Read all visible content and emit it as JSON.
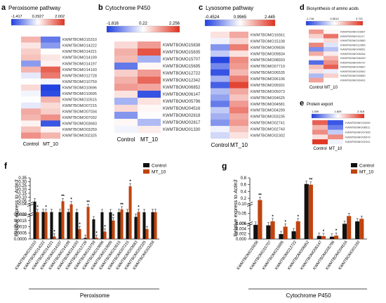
{
  "chart_data": [
    {
      "type": "heatmap",
      "panel_letter": "a",
      "title": "Peroxisome pathway",
      "scale": {
        "labels": [
          "-1.417",
          "0.2927",
          "2.002"
        ],
        "min": -1.417,
        "mid": 0.2927,
        "max": 2.002
      },
      "columns": [
        "Control",
        "MT_10"
      ],
      "rows": [
        "KWMTBOMO15310",
        "KWMTBOMO14222",
        "KWMTBOMO14221",
        "KWMTBOMO14199",
        "KWMTBOMO14197",
        "KWMTBOMO14193",
        "KWMTBOMO12728",
        "KWMTBOMO10759",
        "KWMTBOMO10696",
        "KWMTBOMO10695",
        "KWMTBOMO10515",
        "KWMTBOMO07215",
        "KWMTBOMO07034",
        "KWMTBOMO07032",
        "KWMTBOMO03683",
        "KWMTBOMO03259",
        "KWMTBOMO02325"
      ],
      "values": [
        [
          0.9,
          -0.9
        ],
        [
          0.5,
          -0.6
        ],
        [
          0.7,
          0.3
        ],
        [
          0.8,
          0.5
        ],
        [
          -0.6,
          0.4
        ],
        [
          0.9,
          1.6
        ],
        [
          0.1,
          1.4
        ],
        [
          0.3,
          0.2
        ],
        [
          0.6,
          -1.4
        ],
        [
          0.2,
          -1.3
        ],
        [
          0.3,
          0.9
        ],
        [
          0.1,
          0.6
        ],
        [
          1.0,
          0.7
        ],
        [
          0.9,
          1.2
        ],
        [
          0.4,
          -1.2
        ],
        [
          0.8,
          0.4
        ],
        [
          1.2,
          0.9
        ]
      ]
    },
    {
      "type": "heatmap",
      "panel_letter": "b",
      "title": "Cytochrome P450",
      "scale": {
        "labels": [
          "-1.816",
          "0.22",
          "2.256"
        ],
        "min": -1.816,
        "mid": 0.22,
        "max": 2.256
      },
      "columns": [
        "Control",
        "MT_10"
      ],
      "rows": [
        "KWMTBOMO15838",
        "KWMTBOMO15835",
        "KWMTBOMO15707",
        "KWMTBOMO15695",
        "KWMTBOMO12722",
        "KWMTBOMO12342",
        "KWMTBOMO06852",
        "KWMTBOMO06147",
        "KWMTBOMO05796",
        "KWMTBOMO04516",
        "KWMTBOMO02818",
        "KWMTBOMO02817",
        "KWMTBOMO01330"
      ],
      "values": [
        [
          0.6,
          1.2
        ],
        [
          1.0,
          1.9
        ],
        [
          0.9,
          -0.6
        ],
        [
          -1.2,
          0.3
        ],
        [
          0.7,
          1.2
        ],
        [
          1.0,
          1.7
        ],
        [
          1.2,
          1.1
        ],
        [
          0.5,
          -1.6
        ],
        [
          -0.6,
          0.5
        ],
        [
          0.6,
          0.3
        ],
        [
          -0.9,
          0.2
        ],
        [
          0.3,
          -0.5
        ],
        [
          0.1,
          0.4
        ]
      ]
    },
    {
      "type": "heatmap",
      "panel_letter": "c",
      "title": "Lysosome pathway",
      "scale": {
        "labels": [
          "-0.4524",
          "0.9965",
          "2.445"
        ],
        "min": -0.4524,
        "mid": 0.9965,
        "max": 2.445
      },
      "columns": [
        "Control",
        "MT_10"
      ],
      "rows": [
        "KWMTBOMO16561",
        "KWMTBOMO15108",
        "KWMTBOMO09836",
        "KWMTBOMO09834",
        "KWMTBOMO08933",
        "KWMTBOMO07710",
        "KWMTBOMO06535",
        "KWMTBOMO06106",
        "KWMTBOMO05931",
        "KWMTBOMO05073",
        "KWMTBOMO04625",
        "KWMTBOMO04581",
        "KWMTBOMO04299",
        "KWMTBOMO03235",
        "KWMTBOMO02741",
        "KWMTBOMO02740",
        "KWMTBOMO02302"
      ],
      "values": [
        [
          1.2,
          1.6
        ],
        [
          0.9,
          1.3
        ],
        [
          0.2,
          1.9
        ],
        [
          0.6,
          1.2
        ],
        [
          -0.4,
          1.8
        ],
        [
          0.1,
          1.7
        ],
        [
          -0.3,
          1.5
        ],
        [
          0.4,
          1.9
        ],
        [
          -0.2,
          2.3
        ],
        [
          0.5,
          1.6
        ],
        [
          0.3,
          1.4
        ],
        [
          0.0,
          1.7
        ],
        [
          0.6,
          1.9
        ],
        [
          0.4,
          1.6
        ],
        [
          0.2,
          1.7
        ],
        [
          0.9,
          1.4
        ],
        [
          0.7,
          1.2
        ]
      ]
    },
    {
      "type": "heatmap",
      "panel_letter": "d",
      "title": "Biosynthesis of amino acids",
      "scale": {
        "labels": [
          "-1.716",
          "0.5013",
          "2.721"
        ],
        "min": -1.716,
        "mid": 0.5013,
        "max": 2.721
      },
      "columns": [
        "Control",
        "MT_10"
      ],
      "rows": [
        "KWMTBOMO15987",
        "KWMTBOMO11117",
        "KWMTBOMO10580",
        "KWMTBOMO12965",
        "KWMTBOMO09651",
        "KWMTBOMO06254",
        "KWMTBOMO06253",
        "KWMTBOMO05737",
        "KWMTBOMO04987",
        "KWMTBOMO02062",
        "KWMTBOMO00650",
        "KWMTBOMO00491"
      ],
      "values": [
        [
          1.6,
          0.6
        ],
        [
          1.0,
          2.0
        ],
        [
          0.4,
          0.9
        ],
        [
          1.8,
          0.2
        ],
        [
          -0.8,
          -0.2
        ],
        [
          1.4,
          0.7
        ],
        [
          0.6,
          1.3
        ],
        [
          -1.2,
          1.7
        ],
        [
          1.2,
          2.2
        ],
        [
          0.8,
          0.3
        ],
        [
          -0.3,
          1.0
        ],
        [
          1.5,
          0.5
        ]
      ]
    },
    {
      "type": "heatmap",
      "panel_letter": "e",
      "title": "Protein export",
      "scale": {
        "labels": [
          "1.339",
          "1.829",
          "2.318"
        ],
        "min": 1.339,
        "mid": 1.829,
        "max": 2.318
      },
      "columns": [
        "Control",
        "MT_10"
      ],
      "rows": [
        "KWMTBOMO15290",
        "KWMTBOMO08511",
        "KWMTBOMO07695",
        "KWMTBOMO05979",
        "KWMTBOMO02241"
      ],
      "values": [
        [
          2.2,
          1.4
        ],
        [
          2.0,
          1.5
        ],
        [
          2.1,
          1.7
        ],
        [
          1.9,
          2.1
        ],
        [
          2.3,
          1.8
        ]
      ]
    },
    {
      "type": "bar",
      "panel_letter": "f",
      "xlabel": "Peroxisome",
      "ylabel_prefix": "Relative express to ",
      "ylabel_gene": "Actin3",
      "legend": [
        "Control",
        "MT_10"
      ],
      "legend_position": "top-right",
      "y_segments": [
        {
          "min": 0,
          "max": 0.002,
          "ticks": [
            "0.0000",
            "0.0005",
            "0.0010",
            "0.0015",
            "0.0020"
          ]
        },
        {
          "min": 0.002,
          "max": 0.04,
          "ticks": [
            "0.002",
            "0.04"
          ]
        },
        {
          "min": 0.04,
          "max": 0.35,
          "ticks": [
            "0.05",
            "0.10",
            "0.15",
            "0.20",
            "0.25",
            "0.30",
            "0.35"
          ]
        }
      ],
      "categories": [
        "KWMTBOMO15310",
        "KWMTBOMO14222",
        "KWMTBOMO14221",
        "KWMTBOMO14197",
        "KWMTBOMO14199",
        "KWMTBOMO14193",
        "KWMTBOMO12728",
        "KWMTBOMO10759",
        "KWMTBOMO10696",
        "KWMTBOMO10695",
        "KWMTBOMO10515",
        "KWMTBOMO07215",
        "KWMTBOMO03683",
        "KWMTBOMO02325",
        "KWMTBOMO03259"
      ],
      "series": [
        {
          "name": "Control",
          "color": "#111111",
          "values": [
            0.042,
            0.0033,
            0.0031,
            0.0029,
            0.0032,
            0.0024,
            9e-05,
            0.0016,
            0.0022,
            0.0021,
            0.0028,
            0.0023,
            0.0018,
            0.0023,
            0.0027
          ]
        },
        {
          "name": "MT_10",
          "color": "#c1440e",
          "values": [
            0.0028,
            0.0029,
            0.0002,
            0.047,
            0.038,
            0.0008,
            0.0265,
            0.0001,
            0.0006,
            0.0015,
            0.015,
            0.24,
            0.0033,
            0.0008,
            0.0026
          ]
        }
      ],
      "annotations": [
        "*",
        "*",
        "*",
        "**",
        "*",
        "*",
        "**",
        "*",
        "*",
        "*",
        "**",
        "*",
        "*"
      ]
    },
    {
      "type": "bar",
      "panel_letter": "g",
      "xlabel": "Cytochrome P450",
      "ylabel_prefix": "Relative express to ",
      "ylabel_gene": "Actin3",
      "legend": [
        "Control",
        "MT_10"
      ],
      "legend_position": "top-right",
      "y_segments": [
        {
          "min": 0,
          "max": 0.006,
          "ticks": [
            "0.000",
            "0.002",
            "0.004",
            "0.006"
          ]
        },
        {
          "min": 0.006,
          "max": 0.1,
          "ticks": [
            "0.006",
            "0.05",
            "0.10"
          ]
        },
        {
          "min": 0.1,
          "max": 0.8,
          "ticks": [
            "0.2",
            "0.4",
            "0.6",
            "0.8"
          ]
        }
      ],
      "categories": [
        "KWMTBOMO15838",
        "KWMTBOMO15707",
        "KWMTBOMO15695",
        "KWMTBOMO12722",
        "KWMTBOMO06852",
        "KWMTBOMO06147",
        "KWMTBOMO05796",
        "KWMTBOMO04516",
        "KWMTBOMO01330"
      ],
      "series": [
        {
          "name": "Control",
          "color": "#111111",
          "values": [
            0.0055,
            0.0053,
            0.0019,
            0.003,
            0.62,
            0.0012,
            0.0009,
            0.0059,
            0.0063
          ]
        },
        {
          "name": "MT_10",
          "color": "#c1440e",
          "values": [
            0.15,
            0.0068,
            0.0048,
            0.0068,
            0.6,
            0.0011,
            0.0013,
            0.035,
            0.02
          ]
        }
      ],
      "annotations": [
        "**",
        "*",
        "*",
        "*",
        "**",
        "*",
        "*"
      ]
    }
  ]
}
